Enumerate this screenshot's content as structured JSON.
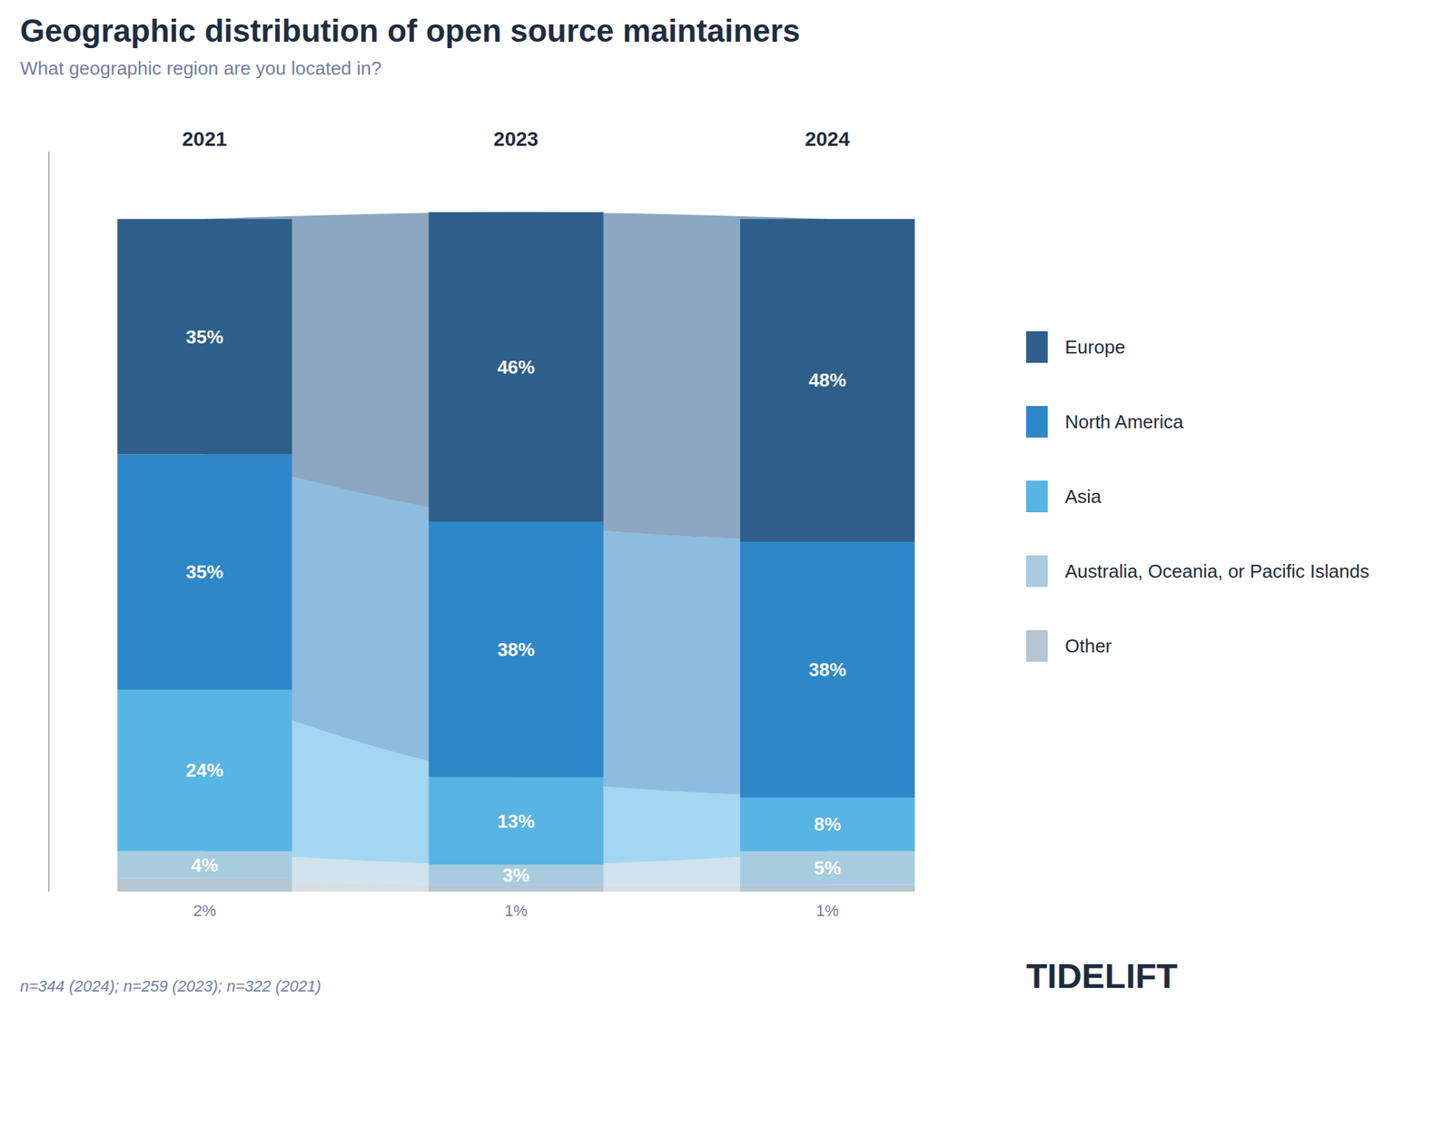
{
  "chart_data": {
    "type": "bar",
    "title": "Geographic distribution of open source maintainers",
    "subtitle": "What geographic region are you located in?",
    "annotations": [
      "n=344 (2024); n=259 (2023); n=322 (2021)",
      "TIDELIFT"
    ],
    "categories": [
      "2021",
      "2023",
      "2024"
    ],
    "series": [
      {
        "name": "Other",
        "color": "#b5c5d2",
        "values": [
          2,
          1,
          1
        ],
        "value_labels": [
          "2%",
          "1%",
          "1%"
        ]
      },
      {
        "name": "Australia, Oceania, or Pacific Islands",
        "color": "#a8ccdf",
        "values": [
          4,
          3,
          5
        ],
        "value_labels": [
          "4%",
          "3%",
          "5%"
        ]
      },
      {
        "name": "Asia",
        "color": "#57b4e3",
        "values": [
          24,
          13,
          8
        ],
        "value_labels": [
          "24%",
          "13%",
          "8%"
        ]
      },
      {
        "name": "North America",
        "color": "#2e87c8",
        "values": [
          35,
          38,
          38
        ],
        "value_labels": [
          "35%",
          "38%",
          "38%"
        ]
      },
      {
        "name": "Europe",
        "color": "#2e5f8a",
        "values": [
          35,
          46,
          48
        ],
        "value_labels": [
          "35%",
          "46%",
          "48%"
        ]
      }
    ],
    "stacked": true,
    "data_labels": true,
    "ylim": [
      0,
      110
    ],
    "tick_labels": "x",
    "legend": "right",
    "grid": false
  }
}
